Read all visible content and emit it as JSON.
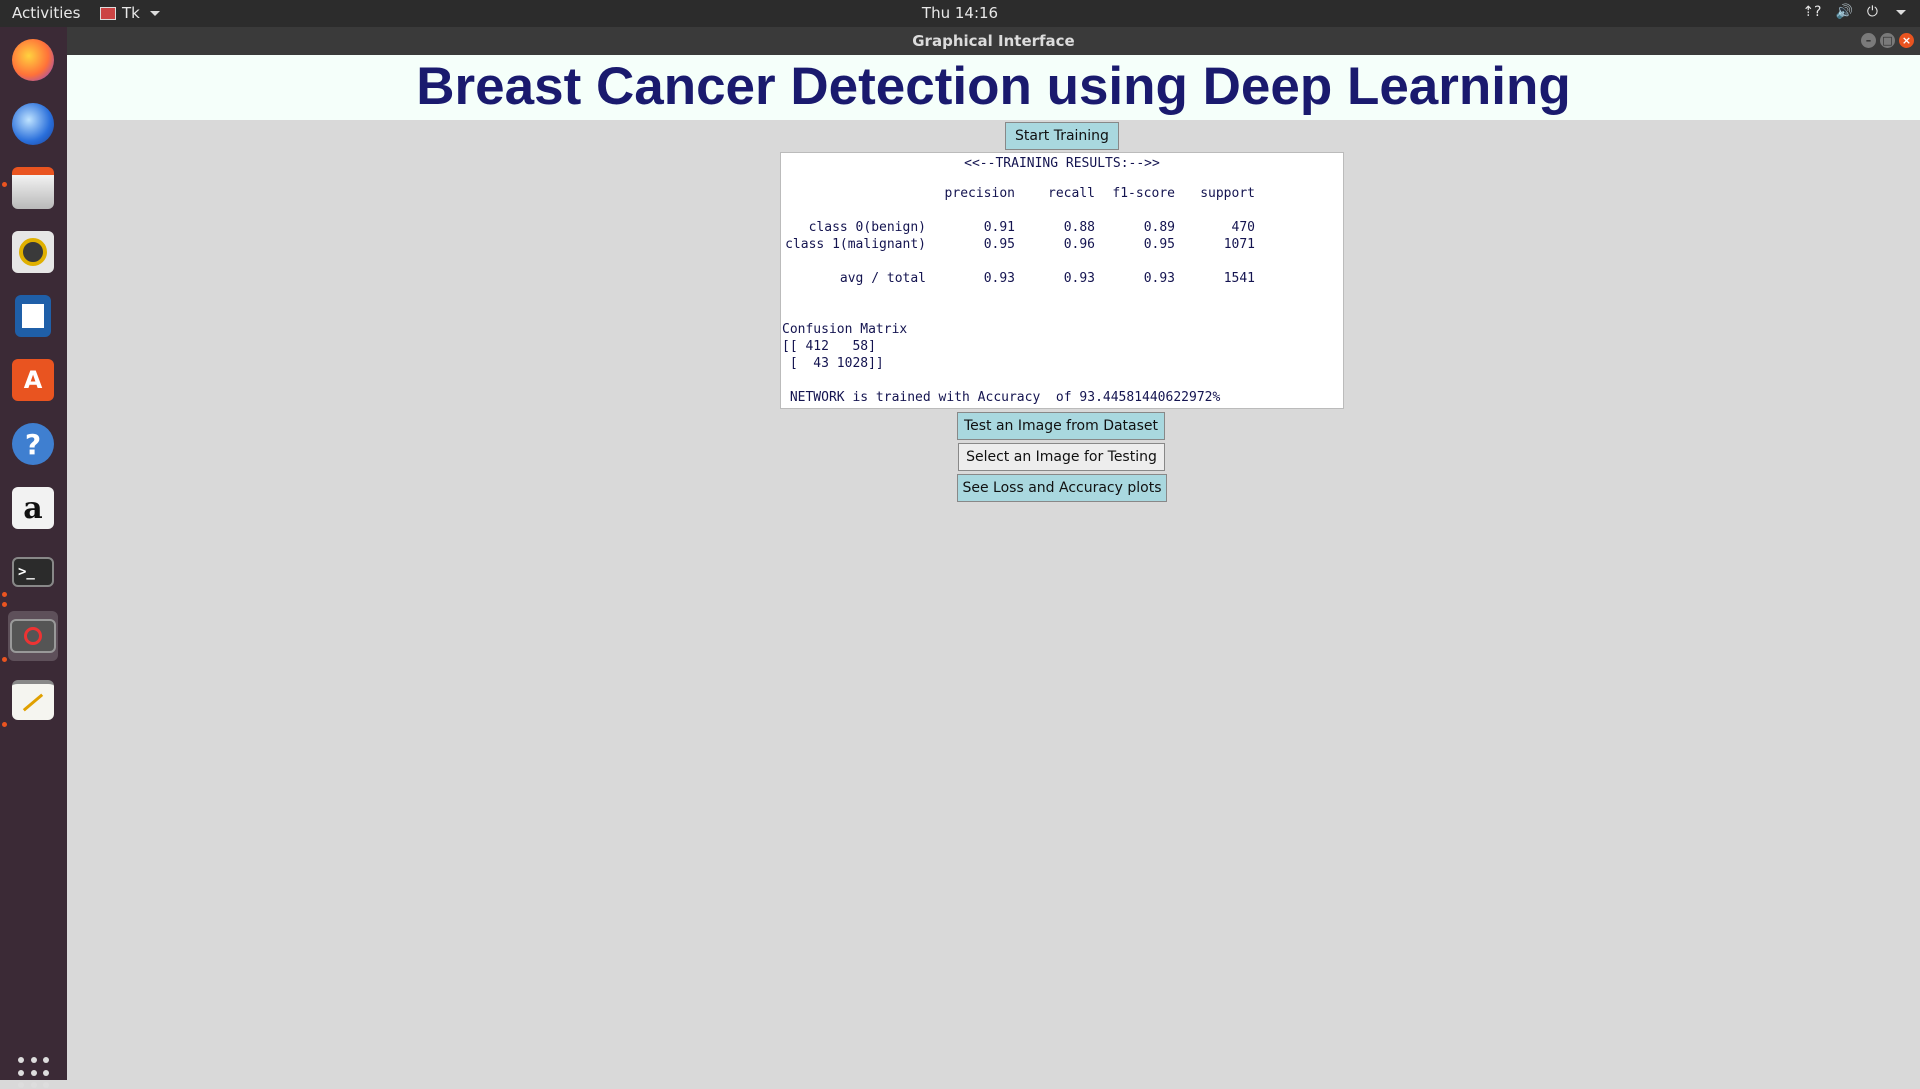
{
  "topbar": {
    "activities": "Activities",
    "app_name": "Tk",
    "clock": "Thu 14:16"
  },
  "tray": {
    "network_icon": "network-question-icon",
    "volume_icon": "volume-icon",
    "power_icon": "power-icon"
  },
  "window": {
    "title": "Graphical Interface"
  },
  "dock": {
    "items": [
      "firefox",
      "thunderbird",
      "files",
      "rhythmbox",
      "writer",
      "software",
      "help",
      "amazon",
      "terminal",
      "tk-app",
      "text-editor"
    ],
    "help_glyph": "?",
    "amazon_glyph": "a",
    "terminal_glyph": ">_"
  },
  "app": {
    "heading": "Breast Cancer Detection using Deep Learning",
    "start_training": "Start Training",
    "results": {
      "header": "<<--TRAINING RESULTS:-->>",
      "columns": [
        "precision",
        "recall",
        "f1-score",
        "support"
      ],
      "rows": [
        {
          "label": "class 0(benign)",
          "precision": "0.91",
          "recall": "0.88",
          "f1": "0.89",
          "support": "470"
        },
        {
          "label": "class 1(malignant)",
          "precision": "0.95",
          "recall": "0.96",
          "f1": "0.95",
          "support": "1071"
        }
      ],
      "avg": {
        "label": "avg / total",
        "precision": "0.93",
        "recall": "0.93",
        "f1": "0.93",
        "support": "1541"
      },
      "confusion_title": "Confusion Matrix",
      "confusion_lines": [
        "[[ 412   58]",
        " [  43 1028]]"
      ],
      "accuracy_line": " NETWORK is trained with Accuracy  of 93.44581440622972%"
    },
    "buttons": {
      "test_dataset": "Test an Image from Dataset",
      "select_image": "Select an Image for Testing",
      "see_plots": "See Loss and Accuracy plots"
    }
  }
}
